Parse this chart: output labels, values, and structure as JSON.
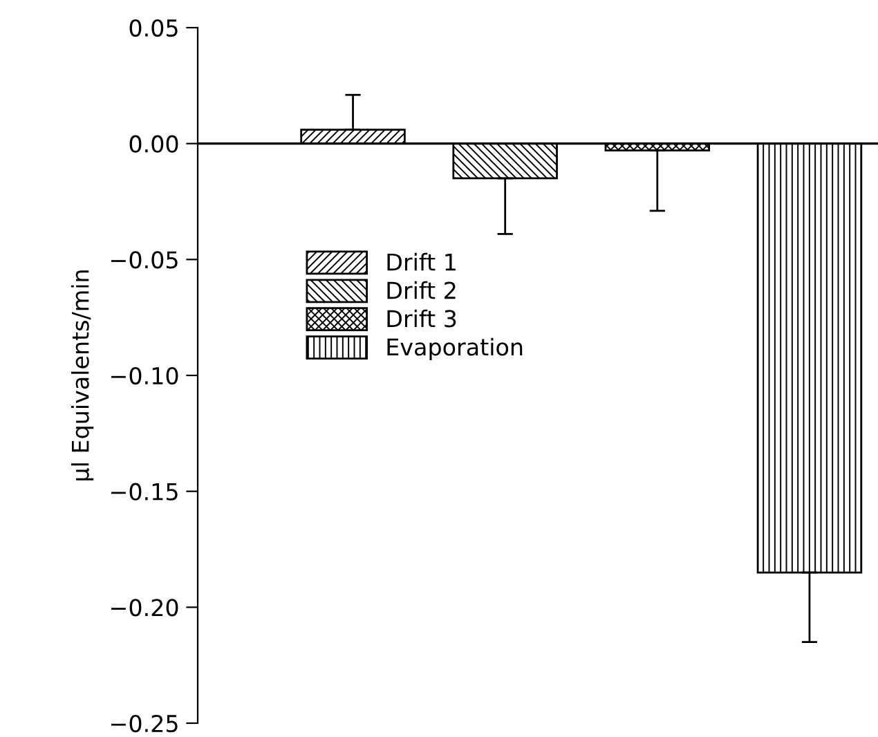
{
  "chart_data": {
    "type": "bar",
    "ylabel": "µl Equivalents/min",
    "categories": [
      null,
      null,
      null,
      null
    ],
    "series": [
      {
        "name": "Drift 1",
        "color": "#000000",
        "values": [
          0.006,
          null,
          null,
          null
        ],
        "errors": [
          [
            0.006,
            0.021
          ],
          null,
          null,
          null
        ]
      },
      {
        "name": "Drift 2",
        "color": "#000000",
        "values": [
          null,
          -0.015,
          null,
          null
        ],
        "errors": [
          null,
          [
            -0.039,
            -0.015
          ],
          null,
          null
        ]
      },
      {
        "name": "Drift 3",
        "color": "#000000",
        "values": [
          null,
          null,
          -0.003,
          null
        ],
        "errors": [
          null,
          null,
          [
            -0.029,
            -0.003
          ],
          null
        ]
      },
      {
        "name": "Evaporation",
        "color": "#000000",
        "values": [
          null,
          null,
          null,
          -0.185
        ],
        "errors": [
          null,
          null,
          null,
          [
            -0.215,
            -0.185
          ]
        ]
      }
    ],
    "ylim": [
      -0.25,
      0.05
    ],
    "yticks": [
      {
        "value": 0.05,
        "label": "0.05"
      },
      {
        "value": 0,
        "label": "0.00"
      },
      {
        "value": -0.05,
        "label": "−0.05"
      },
      {
        "value": -0.1,
        "label": "−0.10"
      },
      {
        "value": -0.15,
        "label": "−0.15"
      },
      {
        "value": -0.2,
        "label": "−0.20"
      },
      {
        "value": -0.25,
        "label": "−0.25"
      }
    ],
    "ref_lines": [
      {
        "axis": "y",
        "value": 0,
        "color": "#000000"
      }
    ],
    "tick_labels": "y",
    "legend": "left",
    "grid": false
  }
}
